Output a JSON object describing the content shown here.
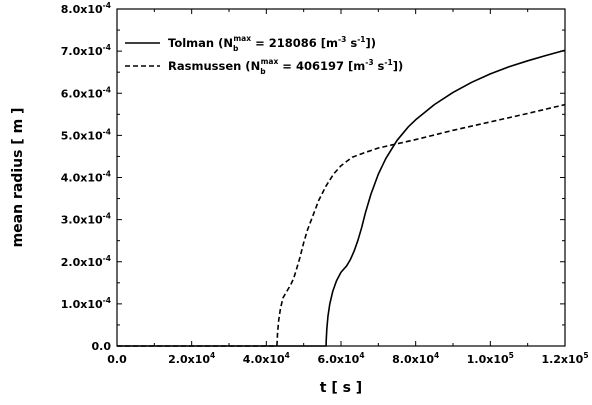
{
  "chart_data": {
    "type": "line",
    "xlabel": "t [ s ]",
    "ylabel": "mean radius [ m ]",
    "xlim": [
      0,
      120000
    ],
    "ylim": [
      0,
      0.0008
    ],
    "x_ticks": [
      {
        "value": 0,
        "label_main": "0.0",
        "label_exp": ""
      },
      {
        "value": 20000,
        "label_main": "2.0x10",
        "label_exp": "4"
      },
      {
        "value": 40000,
        "label_main": "4.0x10",
        "label_exp": "4"
      },
      {
        "value": 60000,
        "label_main": "6.0x10",
        "label_exp": "4"
      },
      {
        "value": 80000,
        "label_main": "8.0x10",
        "label_exp": "4"
      },
      {
        "value": 100000,
        "label_main": "1.0x10",
        "label_exp": "5"
      },
      {
        "value": 120000,
        "label_main": "1.2x10",
        "label_exp": "5"
      }
    ],
    "y_ticks": [
      {
        "value": 0,
        "label_main": "0.0",
        "label_exp": ""
      },
      {
        "value": 0.0001,
        "label_main": "1.0x10",
        "label_exp": "-4"
      },
      {
        "value": 0.0002,
        "label_main": "2.0x10",
        "label_exp": "-4"
      },
      {
        "value": 0.0003,
        "label_main": "3.0x10",
        "label_exp": "-4"
      },
      {
        "value": 0.0004,
        "label_main": "4.0x10",
        "label_exp": "-4"
      },
      {
        "value": 0.0005,
        "label_main": "5.0x10",
        "label_exp": "-4"
      },
      {
        "value": 0.0006,
        "label_main": "6.0x10",
        "label_exp": "-4"
      },
      {
        "value": 0.0007,
        "label_main": "7.0x10",
        "label_exp": "-4"
      },
      {
        "value": 0.0008,
        "label_main": "8.0x10",
        "label_exp": "-4"
      }
    ],
    "legend_position": "top-left",
    "series": [
      {
        "name": "Tolman",
        "legend": {
          "prefix": "Tolman (N",
          "sub": "b",
          "sup": "max",
          "mid": " = 218086 [m",
          "sup2": "-3",
          "mid2": " s",
          "sup3": "-1",
          "suffix": "])"
        },
        "style": "solid",
        "color": "#000000",
        "points": [
          [
            0,
            0
          ],
          [
            56000,
            0
          ],
          [
            56050,
            1.5e-05
          ],
          [
            56200,
            4e-05
          ],
          [
            56500,
            7e-05
          ],
          [
            57000,
            0.0001
          ],
          [
            57800,
            0.00013
          ],
          [
            58800,
            0.000155
          ],
          [
            60000,
            0.000175
          ],
          [
            61500,
            0.00019
          ],
          [
            62500,
            0.000205
          ],
          [
            63500,
            0.000225
          ],
          [
            64500,
            0.00025
          ],
          [
            65500,
            0.00028
          ],
          [
            66500,
            0.000315
          ],
          [
            68000,
            0.00036
          ],
          [
            70000,
            0.000408
          ],
          [
            72000,
            0.000445
          ],
          [
            75000,
            0.000488
          ],
          [
            78000,
            0.00052
          ],
          [
            80000,
            0.000537
          ],
          [
            85000,
            0.000573
          ],
          [
            90000,
            0.000602
          ],
          [
            95000,
            0.000626
          ],
          [
            100000,
            0.000646
          ],
          [
            105000,
            0.000663
          ],
          [
            110000,
            0.000677
          ],
          [
            115000,
            0.00069
          ],
          [
            120000,
            0.000702
          ]
        ]
      },
      {
        "name": "Rasmussen",
        "legend": {
          "prefix": "Rasmussen (N",
          "sub": "b",
          "sup": "max",
          "mid": " =  406197 [m",
          "sup2": "-3",
          "mid2": " s",
          "sup3": "-1",
          "suffix": "])"
        },
        "style": "dashed",
        "color": "#000000",
        "points": [
          [
            0,
            0
          ],
          [
            42800,
            0
          ],
          [
            42900,
            1e-05
          ],
          [
            43000,
            3e-05
          ],
          [
            43300,
            6e-05
          ],
          [
            43800,
            9e-05
          ],
          [
            44500,
            0.000115
          ],
          [
            45500,
            0.00013
          ],
          [
            46500,
            0.000145
          ],
          [
            47300,
            0.00016
          ],
          [
            48000,
            0.00018
          ],
          [
            49000,
            0.00021
          ],
          [
            50000,
            0.000245
          ],
          [
            51000,
            0.000275
          ],
          [
            52500,
            0.00031
          ],
          [
            54000,
            0.000345
          ],
          [
            56000,
            0.00038
          ],
          [
            58000,
            0.000408
          ],
          [
            60000,
            0.000428
          ],
          [
            63000,
            0.000448
          ],
          [
            66000,
            0.000458
          ],
          [
            70000,
            0.00047
          ],
          [
            75000,
            0.00048
          ],
          [
            80000,
            0.00049
          ],
          [
            90000,
            0.000512
          ],
          [
            100000,
            0.000532
          ],
          [
            110000,
            0.000552
          ],
          [
            120000,
            0.000573
          ]
        ]
      }
    ]
  }
}
